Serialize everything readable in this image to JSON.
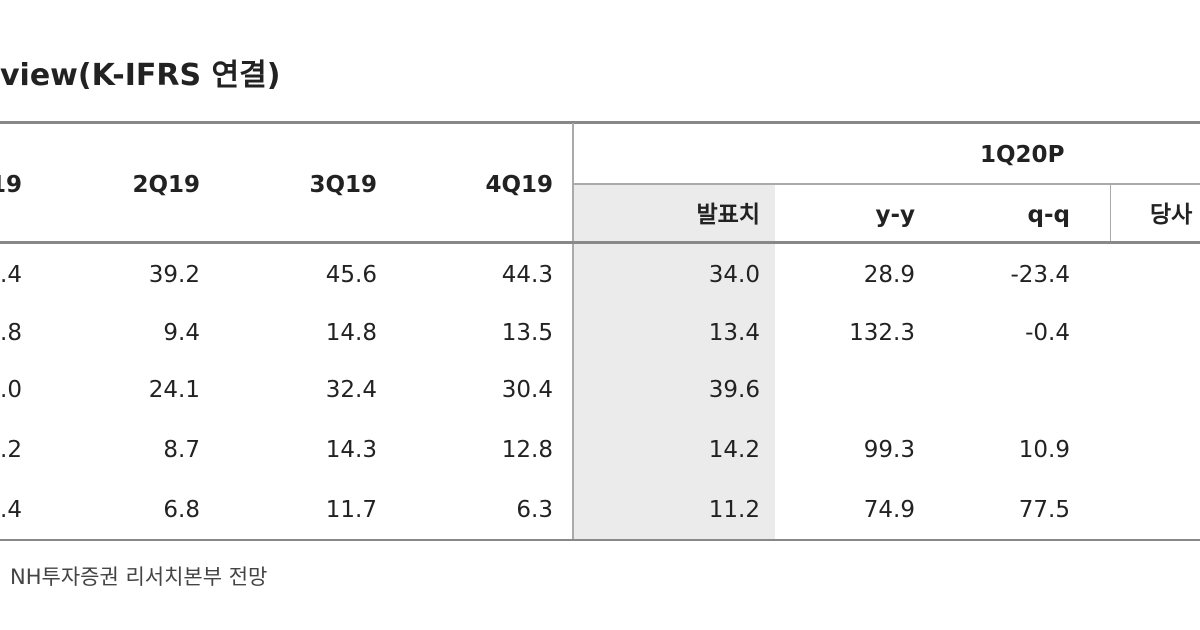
{
  "title": "view(K-IFRS 연결)",
  "header": {
    "quarters": [
      "19",
      "2Q19",
      "3Q19",
      "4Q19"
    ],
    "group": "1Q20P",
    "sub": [
      "발표치",
      "y-y",
      "q-q",
      "당사"
    ]
  },
  "table": {
    "rows": [
      [
        ".4",
        "39.2",
        "45.6",
        "44.3",
        "34.0",
        "28.9",
        "-23.4"
      ],
      [
        ".8",
        "9.4",
        "14.8",
        "13.5",
        "13.4",
        "132.3",
        "-0.4"
      ],
      [
        ".0",
        "24.1",
        "32.4",
        "30.4",
        "39.6",
        null,
        null
      ],
      [
        ".2",
        "8.7",
        "14.3",
        "12.8",
        "14.2",
        "99.3",
        "10.9"
      ],
      [
        ".4",
        "6.8",
        "11.7",
        "6.3",
        "11.2",
        "74.9",
        "77.5"
      ]
    ]
  },
  "source": "NH투자증권 리서치본부 전망"
}
